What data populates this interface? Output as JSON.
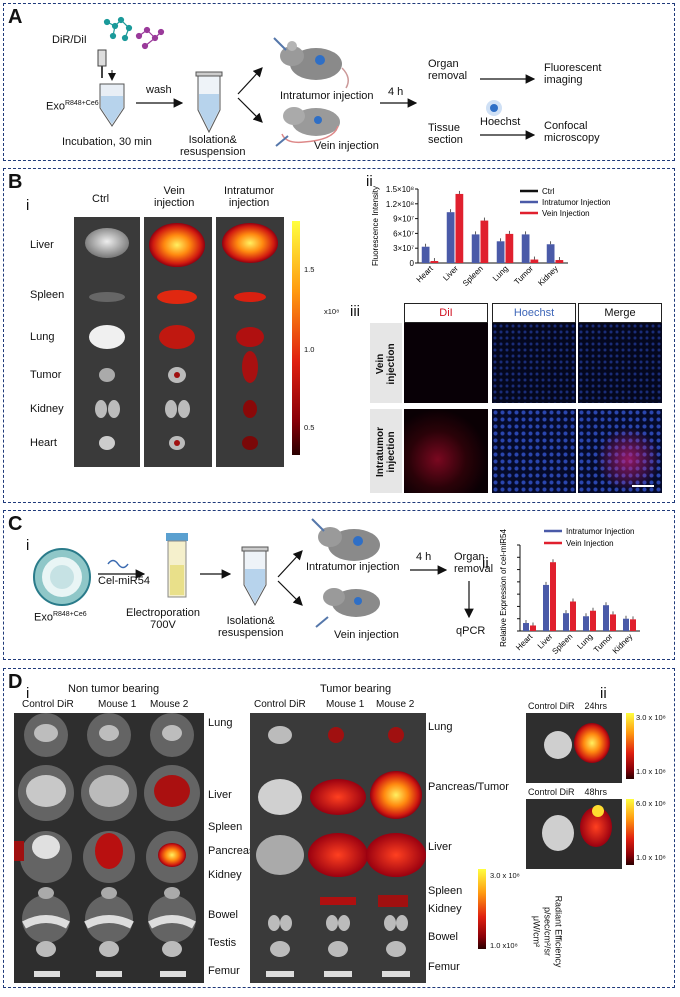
{
  "panelA": {
    "label": "A",
    "dye": "DiR/DiI",
    "exo": "Exo",
    "exo_sup": "R848+Ce6",
    "incubation": "Incubation, 30 min",
    "wash": "wash",
    "isolation1": "Isolation&",
    "isolation2": "resuspension",
    "intratumor": "Intratumor injection",
    "vein": "Vein injection",
    "time": "4 h",
    "organ1": "Organ",
    "organ2": "removal",
    "fluor1": "Fluorescent",
    "fluor2": "imaging",
    "tissue1": "Tissue",
    "tissue2": "section",
    "hoechst": "Hoechst",
    "confocal1": "Confocal",
    "confocal2": "microscopy"
  },
  "panelB": {
    "label": "B",
    "sub_i": "i",
    "sub_ii": "ii",
    "sub_iii": "iii",
    "col_ctrl": "Ctrl",
    "col_vein1": "Vein",
    "col_vein2": "injection",
    "col_intra1": "Intratumor",
    "col_intra2": "injection",
    "rows": [
      "Liver",
      "Spleen",
      "Lung",
      "Tumor",
      "Kidney",
      "Heart"
    ],
    "scale_ticks": [
      "1.5",
      "1.0",
      "0.5"
    ],
    "scale_unit": "x10⁸",
    "micro_cols": [
      "DiI",
      "Hoechst",
      "Merge"
    ],
    "micro_row1_a": "Vein",
    "micro_row1_b": "injection",
    "micro_row2_a": "Intratumor",
    "micro_row2_b": "injection",
    "colors": {
      "ctrl": "#111111",
      "intratumor": "#4a5aa8",
      "vein": "#e0202e",
      "dii": "#d01020",
      "hoechst": "#3d66b8"
    }
  },
  "chart_data": [
    {
      "type": "bar",
      "title": "",
      "xlabel": "",
      "ylabel": "Fluorescence Intensity",
      "ylim": [
        0,
        150000000
      ],
      "yticks": [
        "0",
        "3×10⁷",
        "6×10⁷",
        "9×10⁷",
        "1.2×10⁸",
        "1.5×10⁸"
      ],
      "categories": [
        "Heart",
        "Liver",
        "Spleen",
        "Lung",
        "Tumor",
        "Kidney"
      ],
      "legend_position": "top-right",
      "series": [
        {
          "name": "Ctrl",
          "values": [
            0,
            0,
            0,
            0,
            0,
            0
          ]
        },
        {
          "name": "Intratumor Injection",
          "values": [
            33000000,
            103000000,
            58000000,
            44000000,
            58000000,
            38000000
          ]
        },
        {
          "name": "Vein Injection",
          "values": [
            4000000,
            140000000,
            86000000,
            59000000,
            7000000,
            6000000
          ]
        }
      ]
    },
    {
      "type": "bar",
      "title": "",
      "xlabel": "",
      "ylabel": "Relative Expression of cel-miR54",
      "ylim": [
        0,
        14
      ],
      "categories": [
        "Heart",
        "Liver",
        "Spleen",
        "Lung",
        "Tumor",
        "Kidney"
      ],
      "legend_position": "top-right",
      "series": [
        {
          "name": "Intratumor Injection",
          "values": [
            1.3,
            7.5,
            2.9,
            2.4,
            4.2,
            2.0
          ]
        },
        {
          "name": "Vein Injection",
          "values": [
            0.9,
            11.2,
            4.8,
            3.3,
            2.7,
            1.9
          ]
        }
      ]
    }
  ],
  "panelC": {
    "label": "C",
    "sub_i": "i",
    "sub_ii": "ii",
    "exo": "Exo",
    "exo_sup": "R848+Ce6",
    "mirna": "Cel-miR54",
    "electro1": "Electroporation",
    "electro2": "700V",
    "isolation1": "Isolation&",
    "isolation2": "resuspension",
    "intratumor": "Intratumor injection",
    "vein": "Vein injection",
    "time": "4 h",
    "organ1": "Organ",
    "organ2": "removal",
    "qpcr": "qPCR"
  },
  "panelD": {
    "label": "D",
    "sub_i": "i",
    "sub_ii": "ii",
    "non_tumor": "Non tumor bearing",
    "tumor": "Tumor bearing",
    "cols": [
      "Control DiR",
      "Mouse 1",
      "Mouse 2"
    ],
    "left_organs": [
      "Lung",
      "Liver",
      "Spleen",
      "Pancreas",
      "Kidney",
      "Bowel",
      "Testis",
      "Femur"
    ],
    "right_organs": [
      "Lung",
      "Pancreas/Tumor",
      "Liver",
      "Spleen",
      "Kidney",
      "Bowel",
      "Femur"
    ],
    "scale_top": "3.0 x 10⁸",
    "scale_bottom": "1.0 x10⁸",
    "radiant1": "Radiant Efficiency",
    "radiant2": "p/sec/cm²/sr",
    "radiant3": "μW/cm²",
    "ii_label1": "Control DiR",
    "ii_time1": "24hrs",
    "ii_label2": "Control DiR",
    "ii_time2": "48hrs",
    "ii_scale1_top": "3.0 x 10⁸",
    "ii_scale1_bot": "1.0 x 10⁸",
    "ii_scale2_top": "6.0 x 10⁸",
    "ii_scale2_bot": "1.0 x 10⁸"
  }
}
